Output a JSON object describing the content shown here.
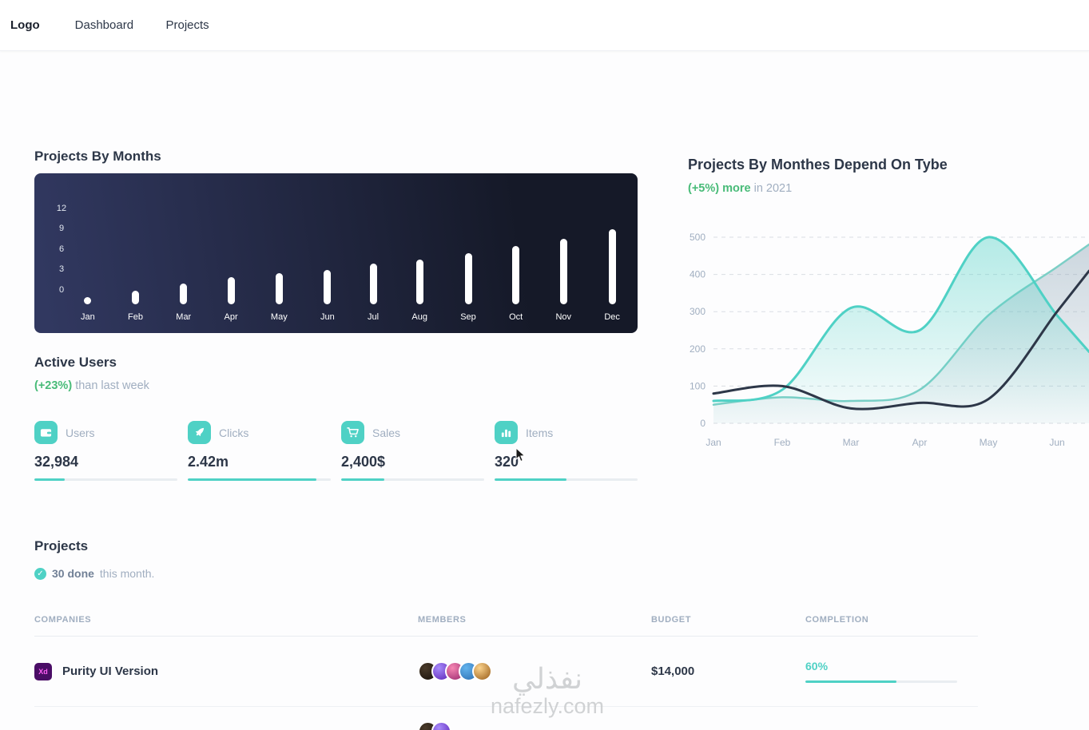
{
  "navbar": {
    "logo": "Logo",
    "items": [
      {
        "label": "Dashboard"
      },
      {
        "label": "Projects"
      }
    ]
  },
  "bar_chart_card": {
    "title": "Projects By Months"
  },
  "active_users": {
    "title": "Active Users",
    "delta": "(+23%)",
    "delta_note": "than last week"
  },
  "stats": [
    {
      "icon": "wallet-icon",
      "label": "Users",
      "value": "32,984",
      "progress": 21
    },
    {
      "icon": "rocket-icon",
      "label": "Clicks",
      "value": "2.42m",
      "progress": 90
    },
    {
      "icon": "cart-icon",
      "label": "Sales",
      "value": "2,400$",
      "progress": 30
    },
    {
      "icon": "stats-icon",
      "label": "Items",
      "value": "320",
      "progress": 50
    }
  ],
  "line_chart_card": {
    "title": "Projects By Monthes Depend On Tybe",
    "delta": "(+5%) more",
    "delta_note": "in 2021"
  },
  "projects": {
    "title": "Projects",
    "done_count": "30 done",
    "done_note": "this month.",
    "columns": [
      "COMPANIES",
      "MEMBERS",
      "BUDGET",
      "COMPLETION"
    ],
    "rows": [
      {
        "icon": "adobe-xd-icon",
        "icon_text": "Xd",
        "company": "Purity UI Version",
        "members_count": 5,
        "budget": "$14,000",
        "completion_label": "60%",
        "completion": 60
      }
    ],
    "partial_row": {
      "members_count": 2
    }
  },
  "watermark": {
    "arabic": "نفذلي",
    "latin": "nafezly.com"
  },
  "colors": {
    "accent_teal": "#4FD1C5",
    "success_green": "#48BB78",
    "dark_card_start": "#313860",
    "dark_card_end": "#151928"
  },
  "chart_data": [
    {
      "type": "bar",
      "title": "Projects By Months",
      "categories": [
        "Jan",
        "Feb",
        "Mar",
        "Apr",
        "May",
        "Jun",
        "Jul",
        "Aug",
        "Sep",
        "Oct",
        "Nov",
        "Dec"
      ],
      "values": [
        1,
        2,
        3,
        4,
        4.5,
        5,
        6,
        6.5,
        7.5,
        8.5,
        9.5,
        11
      ],
      "ylim": [
        0,
        12
      ],
      "yticks": [
        12,
        9,
        6,
        3,
        0
      ],
      "xlabel": "",
      "ylabel": "",
      "bar_color": "#ffffff",
      "background": "dark-navy-gradient",
      "grid": "off"
    },
    {
      "type": "area",
      "title": "Projects By Monthes Depend On Tybe",
      "x": [
        "Jan",
        "Feb",
        "Mar",
        "Apr",
        "May",
        "Jun"
      ],
      "series": [
        {
          "name": "teal-area",
          "color": "#4FD1C5",
          "values": [
            60,
            90,
            310,
            250,
            500,
            290
          ]
        },
        {
          "name": "gray-teal-area",
          "color": "#7ccfc6",
          "values": [
            50,
            70,
            60,
            90,
            290,
            420
          ]
        },
        {
          "name": "dark-line",
          "color": "#2D3748",
          "values": [
            80,
            100,
            40,
            55,
            65,
            300
          ]
        }
      ],
      "ylim": [
        0,
        500
      ],
      "yticks": [
        500,
        400,
        300,
        200,
        100,
        0
      ],
      "xlabel": "",
      "ylabel": "",
      "grid": "dashed",
      "legend": "none"
    }
  ]
}
